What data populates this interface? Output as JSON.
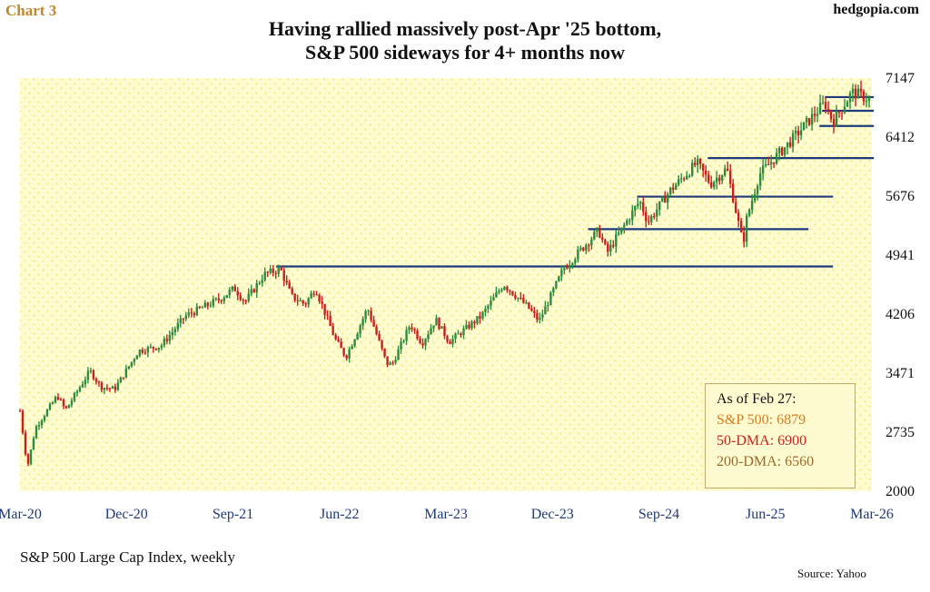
{
  "header": {
    "chart_label": "Chart 3",
    "brand": "hedgopia.com",
    "title_line1": "Having rallied massively post-Apr '25 bottom,",
    "title_line2": "S&P 500 sideways for 4+ months now"
  },
  "footer": {
    "subtitle": "S&P 500 Large Cap Index, weekly",
    "source": "Source: Yahoo"
  },
  "note": {
    "heading": "As of Feb 27:",
    "line_sp": "S&P 500: 6879",
    "line_50": "50-DMA: 6900",
    "line_200": "200-DMA: 6560"
  },
  "colors": {
    "up_bar": "#2e8b3e",
    "down_bar": "#c91f1f",
    "level_line": "#1f3a7a",
    "axis_text": "#1f3a7a",
    "plot_bg": "#fffbd0",
    "dot": "#f1e96a",
    "note_sp": "#d87a1e",
    "note_50dma": "#cc1f1f",
    "note_200dma": "#9a6a2a"
  },
  "chart_data": {
    "type": "ohlc",
    "frequency": "weekly",
    "series_name": "S&P 500",
    "ylim": [
      2000,
      7147
    ],
    "y_ticks": [
      2000,
      2735,
      3471,
      4206,
      4941,
      5676,
      6412,
      7147
    ],
    "x_ticks": [
      "Mar-20",
      "Dec-20",
      "Sep-21",
      "Jun-22",
      "Mar-23",
      "Dec-23",
      "Sep-24",
      "Jun-25",
      "Mar-26"
    ],
    "grid": "dotted background",
    "price_path": [
      [
        "2020-03-01",
        3000
      ],
      [
        "2020-03-20",
        2300
      ],
      [
        "2020-04-10",
        2790
      ],
      [
        "2020-06-05",
        3190
      ],
      [
        "2020-06-26",
        3010
      ],
      [
        "2020-08-28",
        3500
      ],
      [
        "2020-09-25",
        3300
      ],
      [
        "2020-10-30",
        3270
      ],
      [
        "2020-12-31",
        3750
      ],
      [
        "2021-02-26",
        3810
      ],
      [
        "2021-04-30",
        4180
      ],
      [
        "2021-07-30",
        4400
      ],
      [
        "2021-09-03",
        4530
      ],
      [
        "2021-10-01",
        4360
      ],
      [
        "2021-11-19",
        4700
      ],
      [
        "2021-12-31",
        4766
      ],
      [
        "2022-01-28",
        4430
      ],
      [
        "2022-03-04",
        4330
      ],
      [
        "2022-03-31",
        4530
      ],
      [
        "2022-05-20",
        3900
      ],
      [
        "2022-06-17",
        3670
      ],
      [
        "2022-08-12",
        4280
      ],
      [
        "2022-09-30",
        3590
      ],
      [
        "2022-10-14",
        3580
      ],
      [
        "2022-11-30",
        4080
      ],
      [
        "2022-12-30",
        3840
      ],
      [
        "2023-02-03",
        4140
      ],
      [
        "2023-03-10",
        3860
      ],
      [
        "2023-05-31",
        4180
      ],
      [
        "2023-07-28",
        4580
      ],
      [
        "2023-09-29",
        4290
      ],
      [
        "2023-10-27",
        4120
      ],
      [
        "2023-12-29",
        4770
      ],
      [
        "2024-03-28",
        5250
      ],
      [
        "2024-04-19",
        4970
      ],
      [
        "2024-07-12",
        5620
      ],
      [
        "2024-08-02",
        5350
      ],
      [
        "2024-09-27",
        5740
      ],
      [
        "2024-12-06",
        6090
      ],
      [
        "2025-01-10",
        5830
      ],
      [
        "2025-02-21",
        6020
      ],
      [
        "2025-04-04",
        5070
      ],
      [
        "2025-04-11",
        5360
      ],
      [
        "2025-05-16",
        5950
      ],
      [
        "2025-07-31",
        6340
      ],
      [
        "2025-10-31",
        6840
      ],
      [
        "2025-11-21",
        6600
      ],
      [
        "2026-01-09",
        6970
      ],
      [
        "2026-02-27",
        6879
      ]
    ],
    "horizontal_levels": [
      {
        "value": 4800,
        "from": "2021-12-20",
        "to": "2025-11-21"
      },
      {
        "value": 5265,
        "from": "2024-03-01",
        "to": "2025-09-19"
      },
      {
        "value": 5670,
        "from": "2024-07-05",
        "to": "2025-11-21"
      },
      {
        "value": 6150,
        "from": "2025-01-03",
        "to": "2026-03-06"
      },
      {
        "value": 6550,
        "from": "2025-10-17",
        "to": "2026-03-06"
      },
      {
        "value": 6740,
        "from": "2025-10-24",
        "to": "2026-03-06"
      },
      {
        "value": 6910,
        "from": "2025-10-31",
        "to": "2026-03-06"
      }
    ],
    "latest": {
      "date": "2026-02-27",
      "sp500": 6879,
      "dma50": 6900,
      "dma200": 6560
    }
  }
}
